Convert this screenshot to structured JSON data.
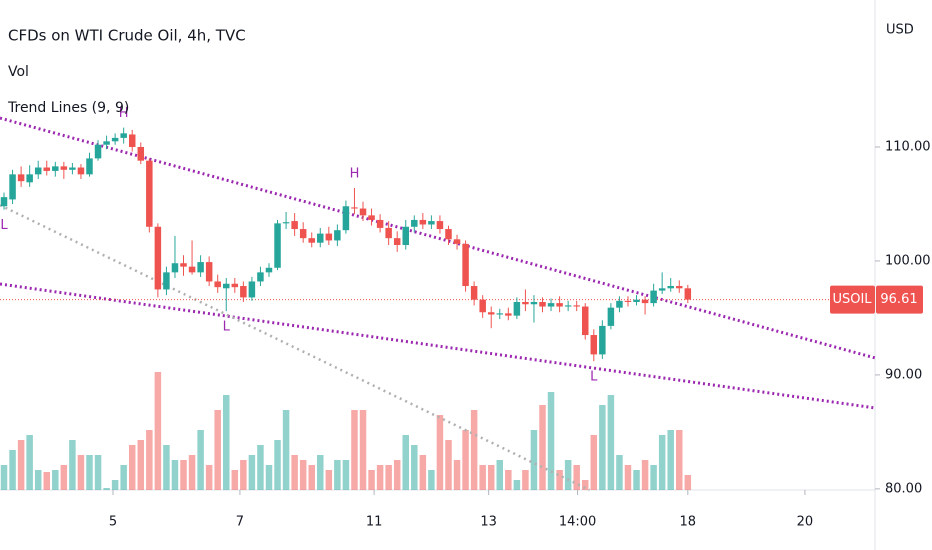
{
  "chart_data": {
    "type": "candlestick",
    "title": "CFDs on WTI Crude Oil, 4h, TVC",
    "indicators": [
      "Vol",
      "Trend Lines (9, 9)"
    ],
    "currency": "USD",
    "symbol": "USOIL",
    "last_price": 96.61,
    "open": [
      104.8,
      105.4,
      107.6,
      106.9,
      107.6,
      108.2,
      107.9,
      108.3,
      108.0,
      108.2,
      107.6,
      109.0,
      110.2,
      110.5,
      110.8,
      111.1,
      110.0,
      108.8,
      103.0,
      97.5,
      99.0,
      99.8,
      99.5,
      99.0,
      99.9,
      98.2,
      97.6,
      98.0,
      97.8,
      96.8,
      98.2,
      99.0,
      99.4,
      103.3,
      103.5,
      102.8,
      102.0,
      101.6,
      102.4,
      101.8,
      102.7,
      104.7,
      104.6,
      104.0,
      103.6,
      102.9,
      102.0,
      101.4,
      103.0,
      103.6,
      103.2,
      103.5,
      102.8,
      101.9,
      101.5,
      97.8,
      96.6,
      95.5,
      95.3,
      95.4,
      95.2,
      96.4,
      96.2,
      96.4,
      96.0,
      96.3,
      96.0,
      96.1,
      96.0,
      93.5,
      91.8,
      94.3,
      95.9,
      96.5,
      96.4,
      96.6,
      96.3,
      97.4,
      97.6,
      97.8,
      97.6
    ],
    "high": [
      106,
      108,
      108.3,
      108.4,
      108.8,
      108.8,
      108.7,
      108.7,
      108.6,
      108.5,
      109.5,
      110.6,
      111,
      111.2,
      111.7,
      111.5,
      110.4,
      109,
      103.3,
      99.5,
      102.2,
      100.5,
      101.8,
      100.5,
      100.4,
      98.8,
      98.5,
      98.5,
      98.2,
      98.6,
      99.5,
      99.8,
      103.6,
      104.3,
      104.2,
      103.4,
      102.5,
      102.9,
      103,
      103.2,
      105.3,
      106.4,
      105.2,
      104.6,
      104.1,
      103.5,
      102.6,
      103.6,
      104,
      104.2,
      104,
      104,
      103.1,
      102.3,
      101.8,
      98.2,
      97,
      96,
      95.8,
      95.9,
      96.8,
      97.5,
      97,
      96.8,
      96.7,
      96.9,
      96.5,
      96.5,
      96.3,
      94,
      94.8,
      96.3,
      96.9,
      96.9,
      97,
      96.9,
      98,
      99,
      98.5,
      98.3,
      97.9
    ],
    "low": [
      104.5,
      105,
      106.5,
      106.5,
      107.2,
      107.5,
      107.4,
      107.2,
      107.6,
      107.2,
      107.4,
      108.8,
      109.8,
      110.2,
      110.3,
      109.6,
      108.5,
      102.5,
      96.8,
      97,
      98.5,
      98.7,
      98.8,
      98.6,
      97.8,
      97.2,
      95.6,
      97.2,
      96.4,
      96.5,
      97.8,
      98.6,
      99.2,
      102.8,
      102.2,
      101.6,
      101.2,
      101.2,
      101.4,
      101.3,
      102.4,
      104.1,
      103.5,
      103.1,
      102.5,
      101.4,
      100.8,
      101,
      102.5,
      102.8,
      102.8,
      102.4,
      101.4,
      101,
      97.3,
      96.1,
      95,
      94.1,
      94.9,
      94.8,
      94.9,
      95.6,
      94.6,
      95.5,
      95.6,
      95.5,
      95.6,
      95.6,
      93.1,
      91.2,
      91.4,
      94,
      95.5,
      96,
      96.1,
      95.3,
      96,
      97.1,
      97.3,
      97.2,
      96.3
    ],
    "close": [
      105.6,
      107.6,
      107.0,
      107.6,
      108.2,
      107.9,
      108.3,
      108.0,
      108.2,
      107.6,
      109.0,
      110.2,
      110.5,
      110.8,
      111.2,
      110.0,
      108.8,
      103.0,
      97.5,
      99.0,
      99.8,
      99.5,
      99.0,
      99.9,
      98.2,
      97.7,
      98.0,
      97.7,
      96.8,
      98.2,
      99.0,
      99.4,
      103.3,
      103.4,
      102.8,
      102.0,
      101.6,
      102.4,
      101.8,
      102.7,
      104.8,
      104.6,
      104.0,
      103.6,
      102.9,
      102.0,
      101.4,
      103.0,
      103.6,
      103.2,
      103.5,
      102.8,
      101.9,
      101.5,
      97.8,
      96.6,
      95.5,
      95.3,
      95.4,
      95.2,
      96.4,
      96.2,
      96.4,
      96.0,
      96.3,
      96.0,
      96.1,
      96.0,
      93.5,
      91.8,
      94.3,
      95.9,
      96.5,
      96.4,
      96.6,
      96.3,
      97.4,
      97.6,
      97.8,
      97.6,
      96.61
    ],
    "volume": [
      25,
      40,
      50,
      55,
      20,
      18,
      20,
      25,
      50,
      35,
      35,
      35,
      2,
      10,
      25,
      45,
      50,
      60,
      118,
      45,
      30,
      30,
      35,
      60,
      25,
      80,
      95,
      20,
      30,
      35,
      45,
      25,
      50,
      80,
      35,
      30,
      25,
      35,
      20,
      30,
      30,
      80,
      80,
      20,
      25,
      25,
      30,
      55,
      45,
      35,
      20,
      75,
      50,
      30,
      60,
      80,
      25,
      25,
      30,
      20,
      10,
      20,
      60,
      85,
      98,
      20,
      30,
      25,
      10,
      55,
      85,
      95,
      35,
      25,
      20,
      30,
      25,
      55,
      60,
      60,
      15
    ],
    "up_color": "#26a69a",
    "down_color": "#ef5350",
    "ylim": [
      79.9,
      122.9
    ],
    "yticks": [
      {
        "value": 80,
        "label": "80.00"
      },
      {
        "value": 90,
        "label": "90.00"
      },
      {
        "value": 100,
        "label": "100.00"
      },
      {
        "value": 110,
        "label": "110.00"
      }
    ],
    "vlim": [
      0,
      150
    ],
    "xlim": [
      -0.47,
      101.9
    ],
    "xticks": [
      {
        "value": 12.75,
        "label": "5"
      },
      {
        "value": 27.6,
        "label": "7"
      },
      {
        "value": 43.3,
        "label": "11"
      },
      {
        "value": 56.7,
        "label": "13"
      },
      {
        "value": 67.1,
        "label": "14:00"
      },
      {
        "value": 80,
        "label": "18"
      },
      {
        "value": 93.7,
        "label": "20"
      }
    ],
    "trend_lines": [
      {
        "x": [
          -0.47,
          101.9
        ],
        "y": [
          112.54,
          91.49
        ],
        "color": "#9c27b0"
      },
      {
        "x": [
          -0.47,
          101.9
        ],
        "y": [
          97.98,
          87.1
        ],
        "color": "#9c27b0"
      },
      {
        "x": [
          -0.47,
          68.5
        ],
        "y": [
          104.9,
          79.9
        ],
        "color": "#b0b0b0"
      }
    ],
    "annotations": [
      {
        "text": "H",
        "index": 14,
        "position": "above"
      },
      {
        "text": "H",
        "index": 41,
        "position": "above"
      },
      {
        "text": "L",
        "index": 0,
        "position": "below"
      },
      {
        "text": "L",
        "index": 26,
        "position": "below"
      },
      {
        "text": "L",
        "index": 69,
        "position": "below"
      }
    ]
  }
}
